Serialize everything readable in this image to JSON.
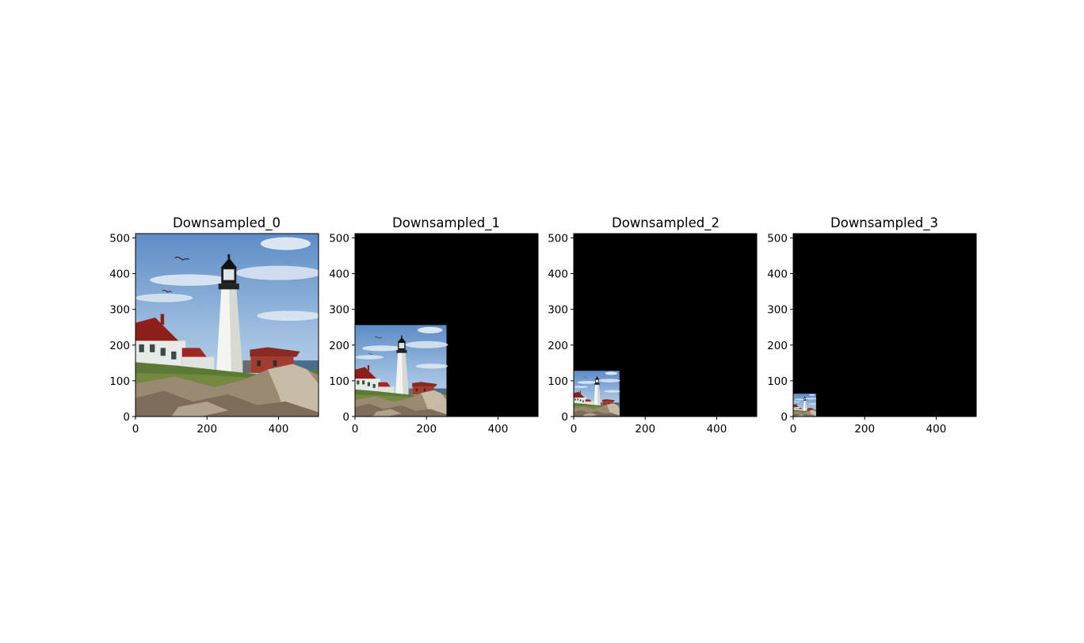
{
  "figure": {
    "background": "#ffffff",
    "panel_background": "#000000"
  },
  "chart_data": [
    {
      "type": "image",
      "title": "Downsampled_0",
      "xlim": [
        0,
        512
      ],
      "ylim": [
        0,
        512
      ],
      "xticks": [
        0,
        200,
        400
      ],
      "yticks": [
        0,
        100,
        200,
        300,
        400,
        500
      ],
      "image_extent": [
        0,
        512,
        0,
        512
      ],
      "image_content": "lighthouse"
    },
    {
      "type": "image",
      "title": "Downsampled_1",
      "xlim": [
        0,
        512
      ],
      "ylim": [
        0,
        512
      ],
      "xticks": [
        0,
        200,
        400
      ],
      "yticks": [
        0,
        100,
        200,
        300,
        400,
        500
      ],
      "image_extent": [
        0,
        256,
        0,
        256
      ],
      "image_content": "lighthouse"
    },
    {
      "type": "image",
      "title": "Downsampled_2",
      "xlim": [
        0,
        512
      ],
      "ylim": [
        0,
        512
      ],
      "xticks": [
        0,
        200,
        400
      ],
      "yticks": [
        0,
        100,
        200,
        300,
        400,
        500
      ],
      "image_extent": [
        0,
        128,
        0,
        128
      ],
      "image_content": "lighthouse"
    },
    {
      "type": "image",
      "title": "Downsampled_3",
      "xlim": [
        0,
        512
      ],
      "ylim": [
        0,
        512
      ],
      "xticks": [
        0,
        200,
        400
      ],
      "yticks": [
        0,
        100,
        200,
        300,
        400,
        500
      ],
      "image_extent": [
        0,
        64,
        0,
        64
      ],
      "image_content": "lighthouse"
    }
  ]
}
